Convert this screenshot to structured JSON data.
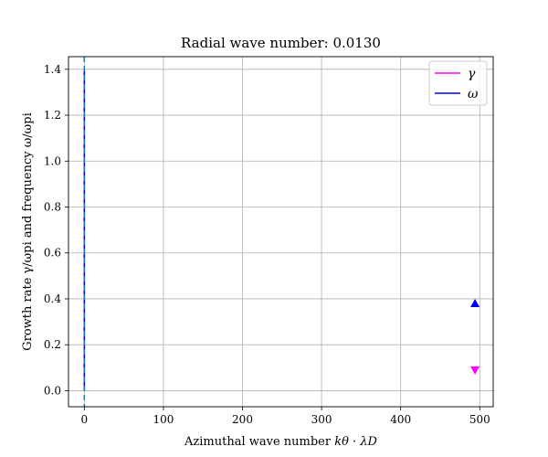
{
  "chart_data": {
    "type": "line",
    "title": "Radial wave number: 0.0130",
    "xlabel_text": "Azimuthal wave number ",
    "xlabel_math": "kθ · λD",
    "ylabel_text": "Growth rate γ/ωpi and frequency ω/ωpi",
    "xlim": [
      -20,
      517
    ],
    "ylim": [
      -0.07,
      1.455
    ],
    "xticks": [
      0,
      100,
      200,
      300,
      400,
      500
    ],
    "yticks": [
      0.0,
      0.2,
      0.4,
      0.6,
      0.8,
      1.0,
      1.2,
      1.4
    ],
    "ytick_labels": [
      "0.0",
      "0.2",
      "0.4",
      "0.6",
      "0.8",
      "1.0",
      "1.2",
      "1.4"
    ],
    "xtick_labels": [
      "0",
      "100",
      "200",
      "300",
      "400",
      "500"
    ],
    "grid": true,
    "legend_position": "top-right",
    "series": [
      {
        "name": "γ",
        "color": "#ff00ff",
        "x": [
          0,
          0
        ],
        "y": [
          0.0,
          1.38
        ]
      },
      {
        "name": "ω",
        "color": "#0000ff",
        "x": [
          0,
          0
        ],
        "y": [
          0.0,
          1.4
        ]
      }
    ],
    "markers": [
      {
        "series": "ω",
        "shape": "triangle-up",
        "color": "#0000ff",
        "x": 494,
        "y": 0.38
      },
      {
        "series": "γ",
        "shape": "triangle-down",
        "color": "#ff00ff",
        "x": 494,
        "y": 0.09
      }
    ],
    "vline": {
      "x": 0,
      "color": "#1f77b4",
      "style": "dashed"
    }
  }
}
